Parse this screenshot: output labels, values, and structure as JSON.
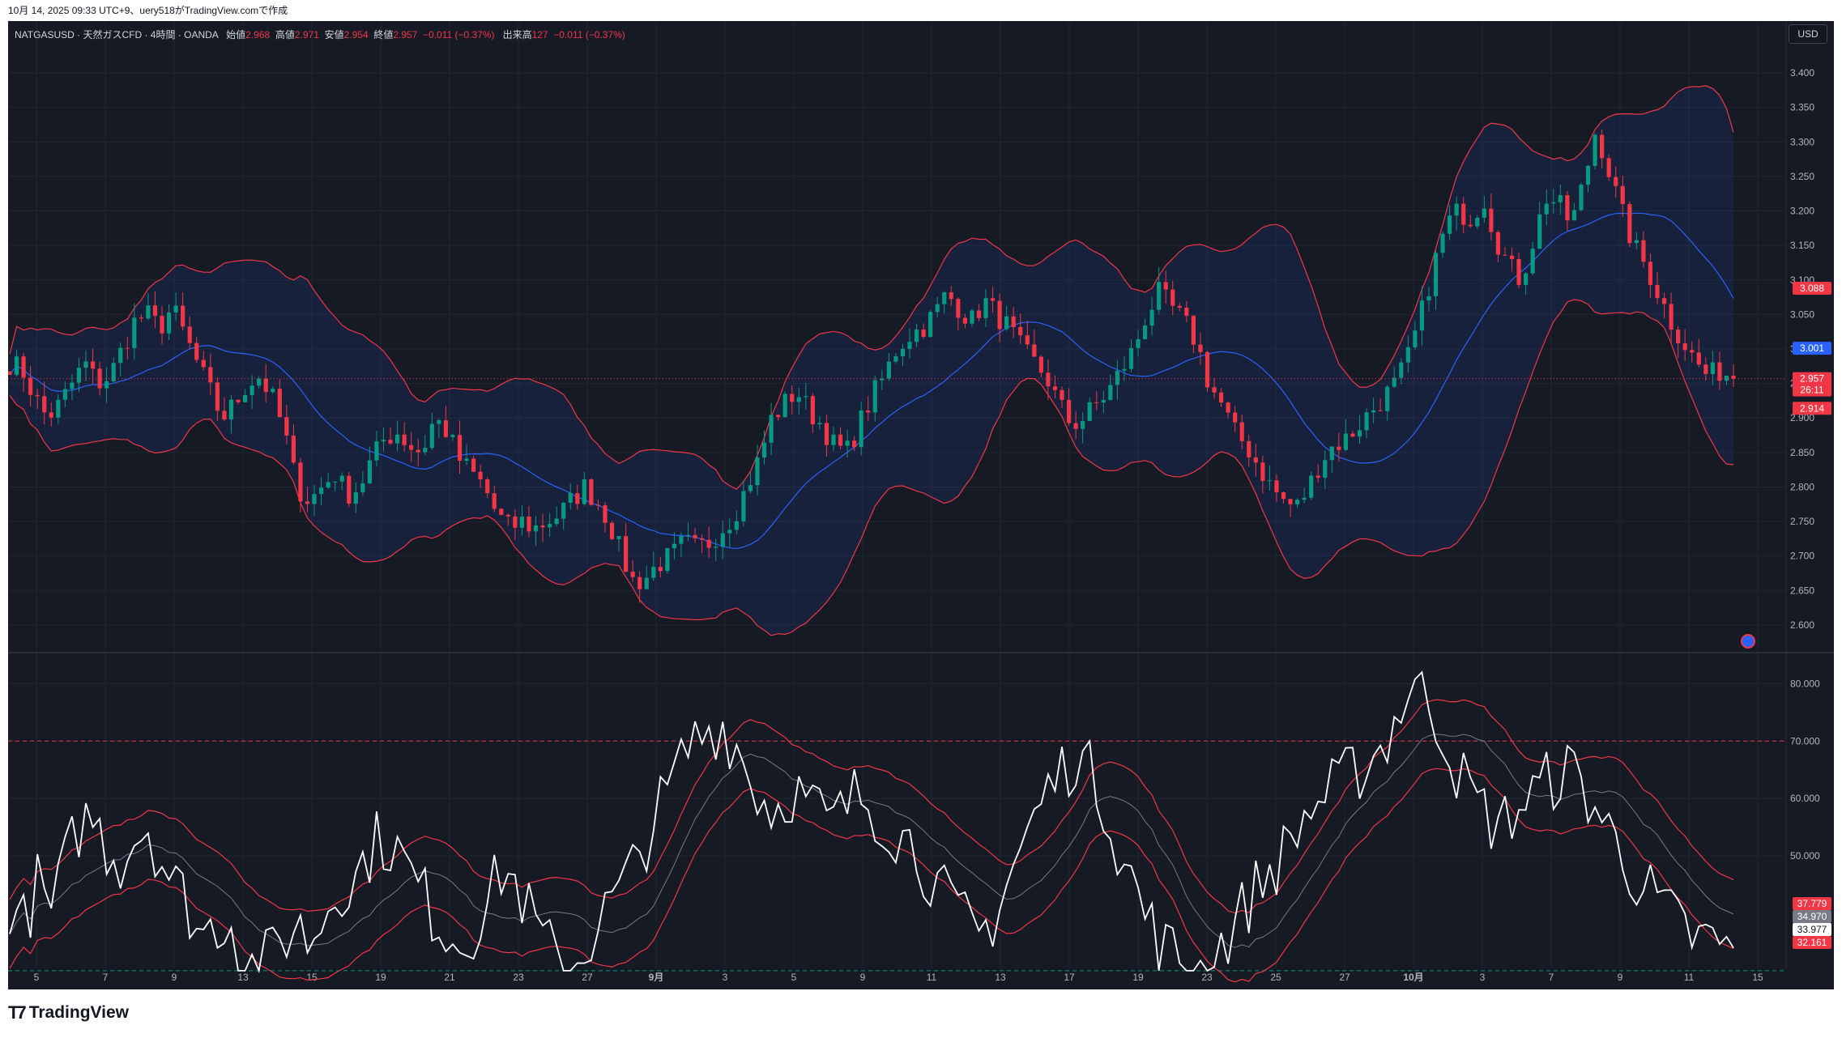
{
  "header": {
    "caption": "10月 14, 2025 09:33 UTC+9、uery518がTradingView.comで作成"
  },
  "legend": {
    "symbol": "NATGASUSD · 天然ガスCFD · 4時間 · OANDA",
    "open_label": "始値",
    "open": "2.968",
    "high_label": "高値",
    "high": "2.971",
    "low_label": "安値",
    "low": "2.954",
    "close_label": "終値",
    "close": "2.957",
    "change": "−0.011 (−0.37%)",
    "volume_label": "出来高",
    "volume": "127",
    "volume_change": "−0.011 (−0.37%)"
  },
  "currency": "USD",
  "footer": {
    "brand": "TradingView"
  },
  "colors": {
    "background": "#161a25",
    "up": "#089981",
    "down": "#f23645",
    "basis": "#2962ff",
    "band": "#f23645",
    "rsi": "#ffffff",
    "grid": "#222632"
  },
  "price_tags": [
    {
      "value": "3.088",
      "color": "#f23645"
    },
    {
      "value": "3.001",
      "color": "#2962ff"
    },
    {
      "value": "2.957",
      "sub": "26:11",
      "color": "#f23645"
    },
    {
      "value": "2.914",
      "color": "#f23645"
    }
  ],
  "rsi_tags": [
    {
      "value": "37.779",
      "color": "#f23645"
    },
    {
      "value": "34.970",
      "color": "#787b86"
    },
    {
      "value": "33.977",
      "color": "#ffffff"
    },
    {
      "value": "32.161",
      "color": "#f23645"
    }
  ],
  "chart_data": [
    {
      "type": "candlestick",
      "title": "",
      "x_ticks": [
        "5",
        "7",
        "9",
        "13",
        "15",
        "19",
        "21",
        "23",
        "27",
        "9月",
        "3",
        "5",
        "9",
        "11",
        "13",
        "17",
        "19",
        "23",
        "25",
        "27",
        "10月",
        "3",
        "7",
        "9",
        "11",
        "15"
      ],
      "y_ticks": [
        "3.400",
        "3.350",
        "3.300",
        "3.250",
        "3.200",
        "3.150",
        "3.100",
        "3.050",
        "3.000",
        "2.950",
        "2.900",
        "2.850",
        "2.800",
        "2.750",
        "2.700",
        "2.650",
        "2.600"
      ],
      "ylim": [
        2.56,
        3.44
      ],
      "overlays": [
        "Bollinger Bands basis",
        "Bollinger Bands upper",
        "Bollinger Bands lower"
      ],
      "close_path": [
        2.98,
        2.97,
        2.93,
        2.9,
        2.92,
        2.95,
        2.98,
        2.95,
        2.96,
        3.0,
        3.04,
        3.05,
        3.03,
        3.06,
        3.02,
        2.98,
        2.94,
        2.9,
        2.92,
        2.95,
        2.96,
        2.93,
        2.88,
        2.8,
        2.78,
        2.8,
        2.82,
        2.79,
        2.8,
        2.84,
        2.87,
        2.88,
        2.86,
        2.85,
        2.9,
        2.88,
        2.84,
        2.82,
        2.8,
        2.76,
        2.74,
        2.75,
        2.74,
        2.75,
        2.76,
        2.78,
        2.8,
        2.78,
        2.75,
        2.7,
        2.66,
        2.67,
        2.69,
        2.7,
        2.72,
        2.71,
        2.72,
        2.74,
        2.76,
        2.8,
        2.84,
        2.9,
        2.92,
        2.94,
        2.91,
        2.89,
        2.86,
        2.85,
        2.89,
        2.93,
        2.96,
        3.0,
        3.02,
        3.03,
        3.05,
        3.08,
        3.06,
        3.04,
        3.07,
        3.05,
        3.03,
        3.0,
        2.98,
        2.96,
        2.92,
        2.89,
        2.9,
        2.92,
        2.94,
        2.97,
        3.0,
        3.05,
        3.08,
        3.06,
        3.04,
        3.01,
        2.95,
        2.92,
        2.88,
        2.86,
        2.83,
        2.8,
        2.78,
        2.77,
        2.8,
        2.84,
        2.86,
        2.87,
        2.89,
        2.91,
        2.93,
        2.95,
        2.99,
        3.05,
        3.12,
        3.18,
        3.2,
        3.19,
        3.22,
        3.16,
        3.12,
        3.1,
        3.16,
        3.22,
        3.21,
        3.18,
        3.24,
        3.32,
        3.26,
        3.2,
        3.15,
        3.12,
        3.08,
        3.04,
        3.01,
        2.98,
        2.96,
        2.97,
        2.957
      ]
    },
    {
      "type": "line",
      "title": "",
      "y_ticks": [
        "80.000",
        "70.000",
        "60.000",
        "50.000"
      ],
      "ylim": [
        29,
        84
      ],
      "guides": [
        70,
        30
      ],
      "series": [],
      "rsi_path": [
        42,
        38,
        45,
        40,
        48,
        55,
        57,
        52,
        49,
        53,
        56,
        50,
        45,
        42,
        36,
        38,
        40,
        33,
        30,
        32,
        36,
        38,
        35,
        40,
        46,
        44,
        50,
        53,
        52,
        48,
        44,
        40,
        37,
        35,
        38,
        42,
        48,
        45,
        40,
        35,
        32,
        30,
        34,
        38,
        42,
        45,
        50,
        56,
        60,
        66,
        70,
        72,
        73,
        70,
        64,
        60,
        58,
        62,
        60,
        58,
        55,
        58,
        61,
        59,
        56,
        54,
        52,
        48,
        44,
        40,
        38,
        36,
        40,
        46,
        52,
        57,
        62,
        65,
        68,
        64,
        60,
        52,
        46,
        40,
        35,
        33,
        31,
        30,
        33,
        36,
        40,
        44,
        47,
        50,
        54,
        58,
        60,
        62,
        64,
        66,
        68,
        72,
        78,
        80,
        76,
        70,
        64,
        60,
        57,
        55,
        58,
        60,
        62,
        64,
        65,
        62,
        58,
        54,
        50,
        46,
        43,
        40,
        38,
        36,
        35,
        34.5,
        33.977
      ]
    }
  ]
}
